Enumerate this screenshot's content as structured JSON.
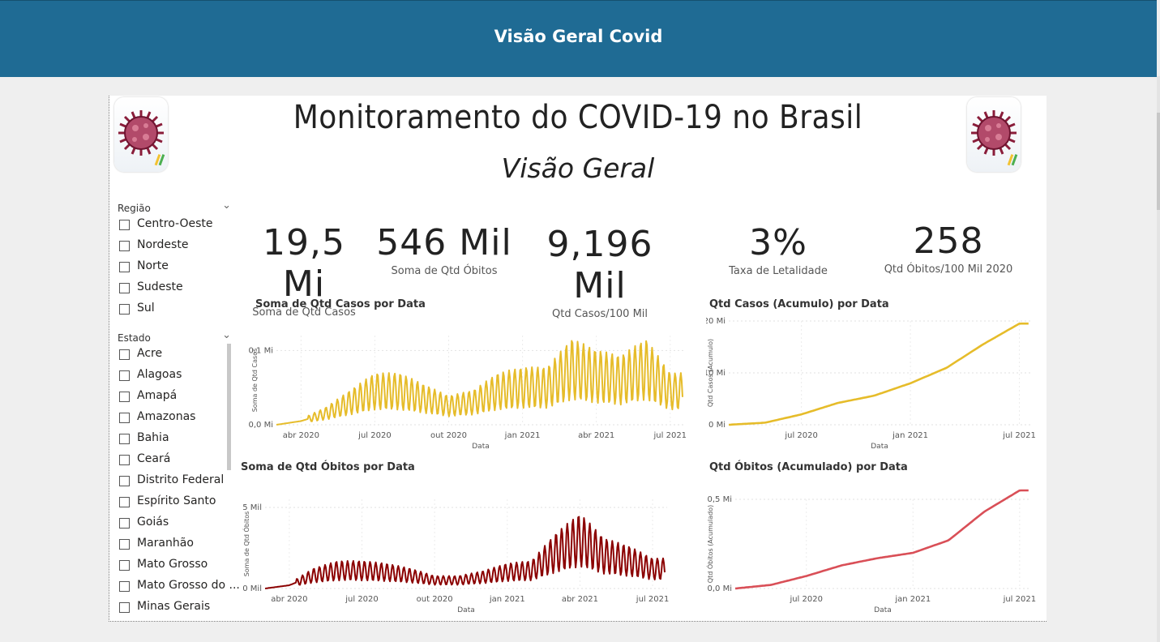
{
  "app": {
    "title": "Visão Geral Covid"
  },
  "report": {
    "title": "Monitoramento do COVID-19 no Brasil",
    "subtitle": "Visão Geral"
  },
  "slicers": {
    "regiao": {
      "label": "Região",
      "items": [
        "Centro-Oeste",
        "Nordeste",
        "Norte",
        "Sudeste",
        "Sul"
      ]
    },
    "estado": {
      "label": "Estado",
      "items": [
        "Acre",
        "Alagoas",
        "Amapá",
        "Amazonas",
        "Bahia",
        "Ceará",
        "Distrito Federal",
        "Espírito Santo",
        "Goiás",
        "Maranhão",
        "Mato Grosso",
        "Mato Grosso do ...",
        "Minas Gerais"
      ]
    }
  },
  "kpis": [
    {
      "value": "19,5 Mi",
      "label": "Soma de Qtd Casos"
    },
    {
      "value": "546 Mil",
      "label": "Soma de Qtd Óbitos"
    },
    {
      "value": "9,196 Mil",
      "label": "Qtd Casos/100 Mil"
    },
    {
      "value": "3%",
      "label": "Taxa de Letalidade"
    },
    {
      "value": "258",
      "label": "Qtd Óbitos/100 Mil 2020"
    }
  ],
  "colors": {
    "header": "#1f6b94",
    "cases": "#e6bc2a",
    "deaths": "#8b0000",
    "deaths_cum": "#d94f57"
  },
  "chart_data": [
    {
      "type": "line",
      "title": "Soma de Qtd Casos por Data",
      "xlabel": "Data",
      "ylabel": "Soma de Qtd Casos",
      "yticks": [
        "0,0 Mi",
        "0,1 Mi"
      ],
      "ytick_values": [
        0,
        0.1
      ],
      "ylim": [
        0,
        0.12
      ],
      "xticks": [
        "abr 2020",
        "jul 2020",
        "out 2020",
        "jan 2021",
        "abr 2021",
        "jul 2021"
      ],
      "series": [
        {
          "color": "#e6bc2a",
          "x": [
            "2020-03",
            "2020-04",
            "2020-05",
            "2020-06",
            "2020-07",
            "2020-08",
            "2020-09",
            "2020-10",
            "2020-11",
            "2020-12",
            "2021-01",
            "2021-02",
            "2021-03",
            "2021-04",
            "2021-05",
            "2021-06",
            "2021-07"
          ],
          "y": [
            0.0,
            0.005,
            0.015,
            0.03,
            0.045,
            0.045,
            0.035,
            0.025,
            0.03,
            0.045,
            0.05,
            0.05,
            0.075,
            0.065,
            0.06,
            0.075,
            0.045
          ]
        }
      ]
    },
    {
      "type": "line",
      "title": "Qtd Casos (Acumulo) por Data",
      "xlabel": "Data",
      "ylabel": "Qtd Casos (Acumulo)",
      "yticks": [
        "0 Mi",
        "10 Mi",
        "20 Mi"
      ],
      "ytick_values": [
        0,
        10,
        20
      ],
      "ylim": [
        0,
        20
      ],
      "xticks": [
        "jul 2020",
        "jan 2021",
        "jul 2021"
      ],
      "series": [
        {
          "color": "#e6bc2a",
          "x": [
            "2020-03",
            "2020-05",
            "2020-07",
            "2020-09",
            "2020-11",
            "2021-01",
            "2021-03",
            "2021-05",
            "2021-07"
          ],
          "y": [
            0,
            0.4,
            2.0,
            4.2,
            5.6,
            8.0,
            11.0,
            15.5,
            19.5
          ]
        }
      ]
    },
    {
      "type": "line",
      "title": "Soma de Qtd Óbitos por Data",
      "xlabel": "Data",
      "ylabel": "Soma de Qtd Óbitos",
      "yticks": [
        "0 Mil",
        "5 Mil"
      ],
      "ytick_values": [
        0,
        5
      ],
      "ylim": [
        0,
        5.5
      ],
      "xticks": [
        "abr 2020",
        "jul 2020",
        "out 2020",
        "jan 2021",
        "abr 2021",
        "jul 2021"
      ],
      "series": [
        {
          "color": "#8b0000",
          "x": [
            "2020-03",
            "2020-04",
            "2020-05",
            "2020-06",
            "2020-07",
            "2020-08",
            "2020-09",
            "2020-10",
            "2020-11",
            "2020-12",
            "2021-01",
            "2021-02",
            "2021-03",
            "2021-04",
            "2021-05",
            "2021-06",
            "2021-07"
          ],
          "y": [
            0.0,
            0.2,
            0.8,
            1.1,
            1.1,
            1.0,
            0.8,
            0.5,
            0.5,
            0.7,
            1.0,
            1.1,
            2.2,
            3.0,
            2.0,
            1.7,
            1.2
          ]
        }
      ]
    },
    {
      "type": "line",
      "title": "Qtd Óbitos (Acumulado) por Data",
      "xlabel": "Data",
      "ylabel": "Qtd Óbitos (Acumulado)",
      "yticks": [
        "0,0 Mi",
        "0,5 Mi"
      ],
      "ytick_values": [
        0,
        0.5
      ],
      "ylim": [
        0,
        0.5
      ],
      "xticks": [
        "jul 2020",
        "jan 2021",
        "jul 2021"
      ],
      "series": [
        {
          "color": "#d94f57",
          "x": [
            "2020-03",
            "2020-05",
            "2020-07",
            "2020-09",
            "2020-11",
            "2021-01",
            "2021-03",
            "2021-05",
            "2021-07"
          ],
          "y": [
            0,
            0.02,
            0.07,
            0.13,
            0.17,
            0.2,
            0.27,
            0.43,
            0.55
          ]
        }
      ]
    }
  ]
}
